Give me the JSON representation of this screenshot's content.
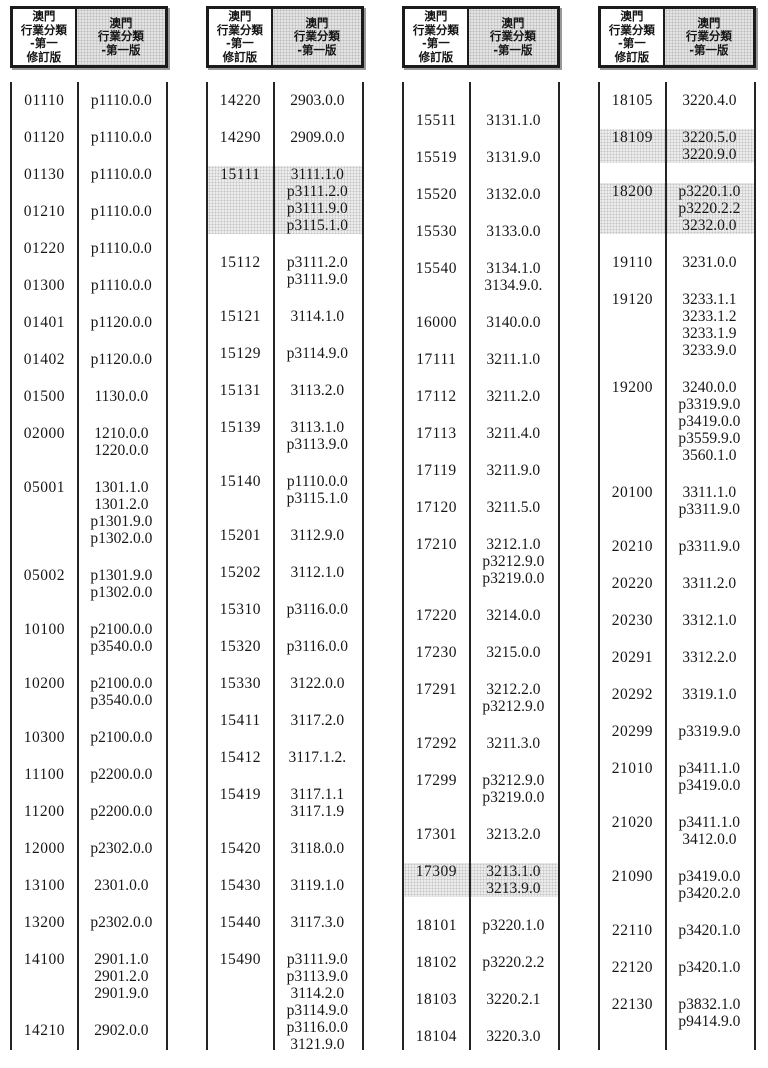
{
  "header": {
    "revised_label": [
      "澳門",
      "行業分類",
      "-第一",
      "修訂版"
    ],
    "first_label": [
      "澳門",
      "行業分類",
      "-第一版"
    ]
  },
  "groups": [
    {
      "rows": [
        {
          "code": "01110",
          "values": [
            "p1110.0.0"
          ]
        },
        {
          "code": "01120",
          "values": [
            "p1110.0.0"
          ]
        },
        {
          "code": "01130",
          "values": [
            "p1110.0.0"
          ]
        },
        {
          "code": "01210",
          "values": [
            "p1110.0.0"
          ]
        },
        {
          "code": "01220",
          "values": [
            "p1110.0.0"
          ]
        },
        {
          "code": "01300",
          "values": [
            "p1110.0.0"
          ]
        },
        {
          "code": "01401",
          "values": [
            "p1120.0.0"
          ]
        },
        {
          "code": "01402",
          "values": [
            "p1120.0.0"
          ]
        },
        {
          "code": "01500",
          "values": [
            "1130.0.0"
          ]
        },
        {
          "code": "02000",
          "values": [
            "1210.0.0",
            "1220.0.0"
          ]
        },
        {
          "code": "05001",
          "values": [
            "1301.1.0",
            "1301.2.0",
            "p1301.9.0",
            "p1302.0.0"
          ]
        },
        {
          "code": "05002",
          "values": [
            "p1301.9.0",
            "p1302.0.0"
          ]
        },
        {
          "code": "10100",
          "values": [
            "p2100.0.0",
            "p3540.0.0"
          ]
        },
        {
          "code": "10200",
          "values": [
            "p2100.0.0",
            "p3540.0.0"
          ]
        },
        {
          "code": "10300",
          "values": [
            "p2100.0.0"
          ]
        },
        {
          "code": "11100",
          "values": [
            "p2200.0.0"
          ]
        },
        {
          "code": "11200",
          "values": [
            "p2200.0.0"
          ]
        },
        {
          "code": "12000",
          "values": [
            "p2302.0.0"
          ]
        },
        {
          "code": "13100",
          "values": [
            "2301.0.0"
          ]
        },
        {
          "code": "13200",
          "values": [
            "p2302.0.0"
          ]
        },
        {
          "code": "14100",
          "values": [
            "2901.1.0",
            "2901.2.0",
            "2901.9.0"
          ]
        },
        {
          "code": "14210",
          "values": [
            "2902.0.0"
          ]
        }
      ]
    },
    {
      "rows": [
        {
          "code": "14220",
          "values": [
            "2903.0.0"
          ]
        },
        {
          "code": "14290",
          "values": [
            "2909.0.0"
          ]
        },
        {
          "code": "15111",
          "values": [
            "3111.1.0",
            "p3111.2.0",
            "p3111.9.0",
            "p3115.1.0"
          ],
          "shaded": true
        },
        {
          "code": "15112",
          "values": [
            "p3111.2.0",
            "p3111.9.0"
          ]
        },
        {
          "code": "15121",
          "values": [
            "3114.1.0"
          ]
        },
        {
          "code": "15129",
          "values": [
            "p3114.9.0"
          ]
        },
        {
          "code": "15131",
          "values": [
            "3113.2.0"
          ]
        },
        {
          "code": "15139",
          "values": [
            "3113.1.0",
            "p3113.9.0"
          ]
        },
        {
          "code": "15140",
          "values": [
            "p1110.0.0",
            "p3115.1.0"
          ]
        },
        {
          "code": "15201",
          "values": [
            "3112.9.0"
          ]
        },
        {
          "code": "15202",
          "values": [
            "3112.1.0"
          ]
        },
        {
          "code": "15310",
          "values": [
            "p3116.0.0"
          ]
        },
        {
          "code": "15320",
          "values": [
            "p3116.0.0"
          ]
        },
        {
          "code": "15330",
          "values": [
            "3122.0.0"
          ]
        },
        {
          "code": "15411",
          "values": [
            "3117.2.0"
          ]
        },
        {
          "code": "15412",
          "values": [
            "3117.1.2."
          ]
        },
        {
          "code": "15419",
          "values": [
            "3117.1.1",
            "3117.1.9"
          ]
        },
        {
          "code": "15420",
          "values": [
            "3118.0.0"
          ]
        },
        {
          "code": "15430",
          "values": [
            "3119.1.0"
          ]
        },
        {
          "code": "15440",
          "values": [
            "3117.3.0"
          ]
        },
        {
          "code": "15490",
          "values": [
            "p3111.9.0",
            "p3113.9.0",
            "3114.2.0",
            "p3114.9.0",
            "p3116.0.0",
            "3121.9.0"
          ]
        }
      ]
    },
    {
      "rows": [
        {
          "code": "15511",
          "values": [
            "3131.1.0"
          ]
        },
        {
          "code": "15519",
          "values": [
            "3131.9.0"
          ]
        },
        {
          "code": "15520",
          "values": [
            "3132.0.0"
          ]
        },
        {
          "code": "15530",
          "values": [
            "3133.0.0"
          ]
        },
        {
          "code": "15540",
          "values": [
            "3134.1.0",
            "3134.9.0."
          ]
        },
        {
          "code": "16000",
          "values": [
            "3140.0.0"
          ]
        },
        {
          "code": "17111",
          "values": [
            "3211.1.0"
          ]
        },
        {
          "code": "17112",
          "values": [
            "3211.2.0"
          ]
        },
        {
          "code": "17113",
          "values": [
            "3211.4.0"
          ]
        },
        {
          "code": "17119",
          "values": [
            "3211.9.0"
          ]
        },
        {
          "code": "17120",
          "values": [
            "3211.5.0"
          ]
        },
        {
          "code": "17210",
          "values": [
            "3212.1.0",
            "p3212.9.0",
            "p3219.0.0"
          ]
        },
        {
          "code": "17220",
          "values": [
            "3214.0.0"
          ]
        },
        {
          "code": "17230",
          "values": [
            "3215.0.0"
          ]
        },
        {
          "code": "17291",
          "values": [
            "3212.2.0",
            "p3212.9.0"
          ]
        },
        {
          "code": "17292",
          "values": [
            "3211.3.0"
          ]
        },
        {
          "code": "17299",
          "values": [
            "p3212.9.0",
            "p3219.0.0"
          ]
        },
        {
          "code": "17301",
          "values": [
            "3213.2.0"
          ]
        },
        {
          "code": "17309",
          "values": [
            "3213.1.0",
            "3213.9.0"
          ],
          "shaded": true
        },
        {
          "code": "18101",
          "values": [
            "p3220.1.0"
          ]
        },
        {
          "code": "18102",
          "values": [
            "p3220.2.2"
          ]
        },
        {
          "code": "18103",
          "values": [
            "3220.2.1"
          ]
        },
        {
          "code": "18104",
          "values": [
            "3220.3.0"
          ]
        }
      ]
    },
    {
      "rows": [
        {
          "code": "18105",
          "values": [
            "3220.4.0"
          ]
        },
        {
          "code": "18109",
          "values": [
            "3220.5.0",
            "3220.9.0"
          ],
          "shaded": true
        },
        {
          "code": "18200",
          "values": [
            "p3220.1.0",
            "p3220.2.2",
            "3232.0.0"
          ],
          "shaded": true
        },
        {
          "code": "19110",
          "values": [
            "3231.0.0"
          ]
        },
        {
          "code": "19120",
          "values": [
            "3233.1.1",
            "3233.1.2",
            "3233.1.9",
            "3233.9.0"
          ]
        },
        {
          "code": "19200",
          "values": [
            "3240.0.0",
            "p3319.9.0",
            "p3419.0.0",
            "p3559.9.0",
            "3560.1.0"
          ]
        },
        {
          "code": "20100",
          "values": [
            "3311.1.0",
            "p3311.9.0"
          ]
        },
        {
          "code": "20210",
          "values": [
            "p3311.9.0"
          ]
        },
        {
          "code": "20220",
          "values": [
            "3311.2.0"
          ]
        },
        {
          "code": "20230",
          "values": [
            "3312.1.0"
          ]
        },
        {
          "code": "20291",
          "values": [
            "3312.2.0"
          ]
        },
        {
          "code": "20292",
          "values": [
            "3319.1.0"
          ]
        },
        {
          "code": "20299",
          "values": [
            "p3319.9.0"
          ]
        },
        {
          "code": "21010",
          "values": [
            "p3411.1.0",
            "p3419.0.0"
          ]
        },
        {
          "code": "21020",
          "values": [
            "p3411.1.0",
            "3412.0.0"
          ]
        },
        {
          "code": "21090",
          "values": [
            "p3419.0.0",
            "p3420.2.0"
          ]
        },
        {
          "code": "22110",
          "values": [
            "p3420.1.0"
          ]
        },
        {
          "code": "22120",
          "values": [
            "p3420.1.0"
          ]
        },
        {
          "code": "22130",
          "values": [
            "p3832.1.0",
            "p9414.9.0"
          ]
        }
      ]
    }
  ]
}
